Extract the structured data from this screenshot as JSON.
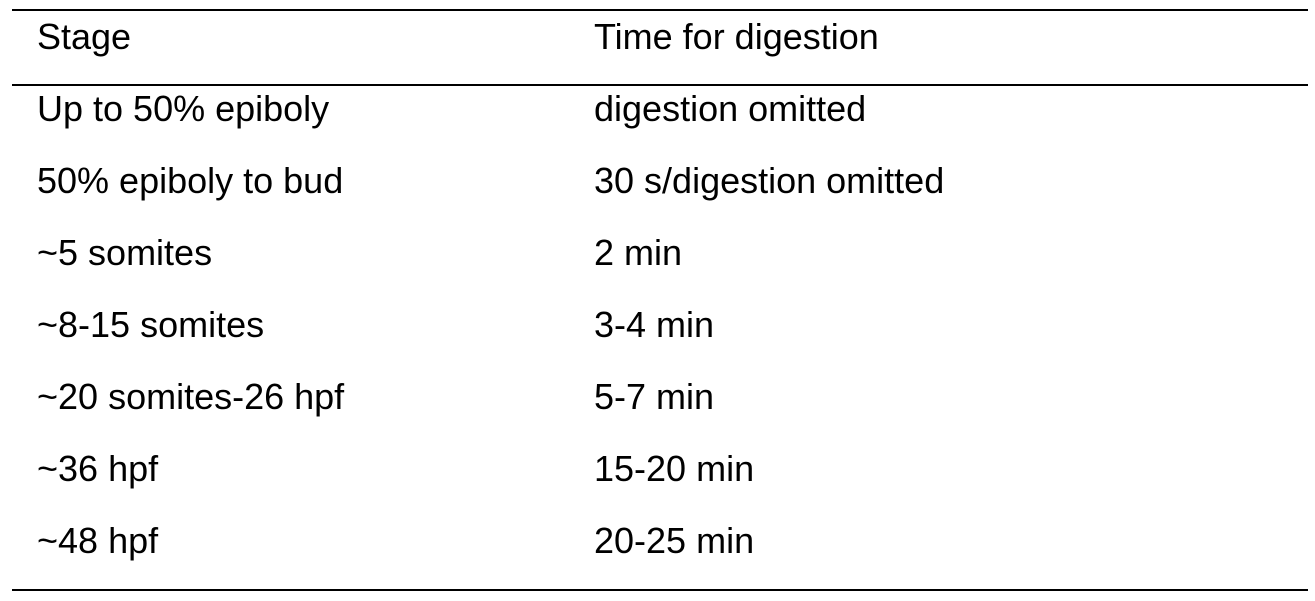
{
  "table": {
    "header": [
      "Stage",
      "Time for digestion"
    ],
    "rows": [
      [
        "Up to 50% epiboly",
        "digestion omitted"
      ],
      [
        "50% epiboly to bud",
        "30 s/digestion omitted"
      ],
      [
        "~5 somites",
        "2 min"
      ],
      [
        "~8-15 somites",
        "3-4 min"
      ],
      [
        "~20 somites-26 hpf",
        "5-7 min"
      ],
      [
        "~36 hpf",
        "15-20 min"
      ],
      [
        "~48 hpf",
        "20-25 min"
      ]
    ]
  }
}
